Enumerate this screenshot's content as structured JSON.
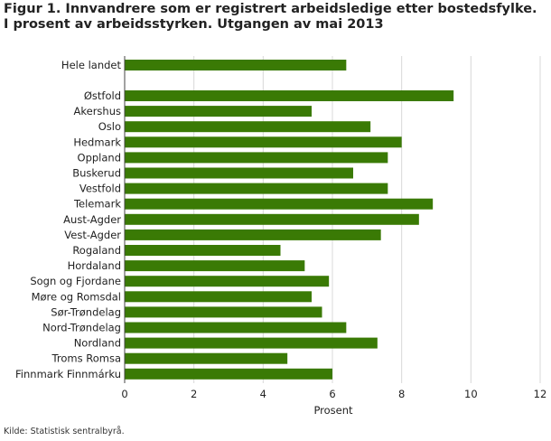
{
  "title": {
    "line1": "Figur 1. Innvandrere som er registrert arbeidsledige etter bostedsfylke.",
    "line2": "I prosent av arbeidsstyrken. Utgangen av mai 2013"
  },
  "source": "Kilde: Statistisk sentralbyrå.",
  "colors": {
    "bar": "#3a7a05",
    "grid": "#d8d8d8",
    "axis": "#444444"
  },
  "chart_data": {
    "type": "bar",
    "orientation": "horizontal",
    "xlabel": "Prosent",
    "xlim": [
      0,
      12
    ],
    "xticks": [
      0,
      2,
      4,
      6,
      8,
      10,
      12
    ],
    "grid": true,
    "gap_after_first": true,
    "categories": [
      "Hele landet",
      "Østfold",
      "Akershus",
      "Oslo",
      "Hedmark",
      "Oppland",
      "Buskerud",
      "Vestfold",
      "Telemark",
      "Aust-Agder",
      "Vest-Agder",
      "Rogaland",
      "Hordaland",
      "Sogn og Fjordane",
      "Møre og Romsdal",
      "Sør-Trøndelag",
      "Nord-Trøndelag",
      "Nordland",
      "Troms Romsa",
      "Finnmark Finnmárku"
    ],
    "values": [
      6.4,
      9.5,
      5.4,
      7.1,
      8.0,
      7.6,
      6.6,
      7.6,
      8.9,
      8.5,
      7.4,
      4.5,
      5.2,
      5.9,
      5.4,
      5.7,
      6.4,
      7.3,
      4.7,
      6.0
    ]
  }
}
